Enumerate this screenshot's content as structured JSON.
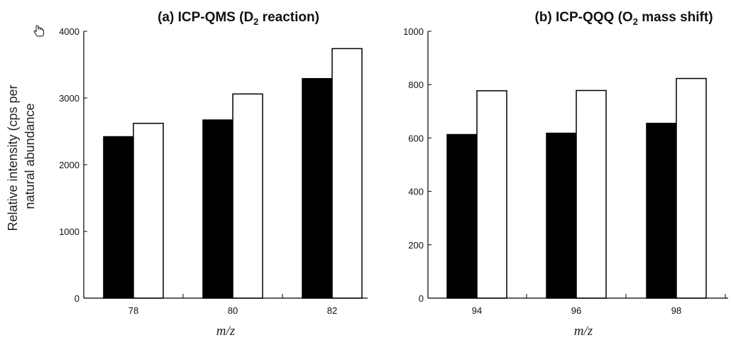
{
  "cursor_icon": "hand-pointer-icon",
  "shared_ylabel": [
    "Relative intensity (cps per",
    "natural abundance"
  ],
  "chart_data": [
    {
      "type": "bar",
      "title_pre": "(a) ICP-QMS (D",
      "title_sub": "2",
      "title_post": " reaction)",
      "xlabel": "m/z",
      "categories": [
        "78",
        "80",
        "82"
      ],
      "ylim": [
        0,
        4000
      ],
      "yticks": [
        "0",
        "1000",
        "2000",
        "3000",
        "4000"
      ],
      "series": [
        {
          "fill": "#000000",
          "values": [
            2420,
            2670,
            3290
          ]
        },
        {
          "fill": "#ffffff",
          "values": [
            2620,
            3060,
            3740
          ]
        }
      ]
    },
    {
      "type": "bar",
      "title_pre": "(b) ICP-QQQ (O",
      "title_sub": "2",
      "title_post": " mass shift)",
      "xlabel": "m/z",
      "categories": [
        "94",
        "96",
        "98"
      ],
      "ylim": [
        0,
        1000
      ],
      "yticks": [
        "0",
        "200",
        "400",
        "600",
        "800",
        "1000"
      ],
      "series": [
        {
          "fill": "#000000",
          "values": [
            613,
            618,
            655
          ]
        },
        {
          "fill": "#ffffff",
          "values": [
            777,
            778,
            823
          ]
        }
      ]
    }
  ]
}
